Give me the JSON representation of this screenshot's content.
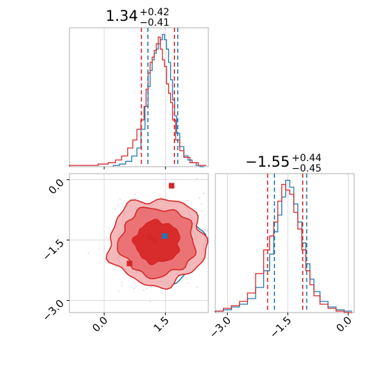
{
  "chart_data": {
    "type": "corner",
    "colors": {
      "blue": "#1f77b4",
      "red": "#d62728"
    },
    "grid": true,
    "parameters": [
      {
        "median": 1.34,
        "plus": 0.42,
        "minus": 0.41,
        "title_main": "1.34",
        "title_plus": "+0.42",
        "title_minus": "−0.41",
        "range": [
          -0.85,
          2.55
        ],
        "ticks": [
          0.0,
          1.5
        ],
        "tick_labels": [
          "0.0",
          "1.5"
        ],
        "quantiles": {
          "blue": [
            1.07,
            1.34,
            1.8
          ],
          "red": [
            0.91,
            1.34,
            1.72
          ]
        }
      },
      {
        "median": -1.55,
        "plus": 0.44,
        "minus": 0.45,
        "title_main": "−1.55",
        "title_plus": "+0.44",
        "title_minus": "−0.45",
        "range": [
          -3.3,
          0.15
        ],
        "ticks": [
          -3.0,
          -1.5,
          0.0
        ],
        "tick_labels": [
          "−3.0",
          "−1.5",
          "0.0"
        ],
        "quantiles": {
          "blue": [
            -1.83,
            -1.5,
            -1.03
          ],
          "red": [
            -2.0,
            -1.57,
            -1.13
          ]
        }
      }
    ],
    "hist1d": [
      {
        "series": [
          {
            "name": "",
            "color": "blue",
            "x": [
              0.3,
              0.45,
              0.6,
              0.75,
              0.85,
              0.95,
              1.05,
              1.1,
              1.15,
              1.2,
              1.25,
              1.3,
              1.35,
              1.4,
              1.45,
              1.5,
              1.55,
              1.6,
              1.65,
              1.7,
              1.75,
              1.8,
              1.9,
              2.0,
              2.1,
              2.2,
              2.3,
              2.4
            ],
            "y": [
              1,
              2,
              4,
              8,
              14,
              28,
              45,
              60,
              72,
              80,
              85,
              88,
              92,
              95,
              99,
              95,
              88,
              78,
              65,
              50,
              38,
              25,
              15,
              8,
              5,
              3,
              1,
              0
            ]
          },
          {
            "name": "",
            "color": "red",
            "x": [
              -0.8,
              -0.3,
              0.0,
              0.2,
              0.35,
              0.5,
              0.65,
              0.75,
              0.85,
              0.95,
              1.0,
              1.05,
              1.1,
              1.15,
              1.2,
              1.25,
              1.3,
              1.35,
              1.4,
              1.45,
              1.5,
              1.55,
              1.6,
              1.65,
              1.7,
              1.8,
              1.9,
              2.0,
              2.2,
              2.4
            ],
            "y": [
              1,
              1,
              2,
              3,
              5,
              8,
              14,
              20,
              28,
              35,
              45,
              58,
              70,
              78,
              82,
              87,
              92,
              97,
              88,
              80,
              75,
              62,
              55,
              48,
              35,
              20,
              12,
              7,
              3,
              1
            ]
          }
        ]
      },
      {
        "series": [
          {
            "name": "",
            "color": "blue",
            "x": [
              -3.2,
              -3.0,
              -2.8,
              -2.6,
              -2.4,
              -2.2,
              -2.0,
              -1.9,
              -1.8,
              -1.7,
              -1.6,
              -1.5,
              -1.4,
              -1.3,
              -1.2,
              -1.1,
              -1.0,
              -0.9,
              -0.8,
              -0.6,
              -0.4,
              -0.2,
              0.0
            ],
            "y": [
              1,
              2,
              4,
              6,
              10,
              18,
              30,
              42,
              58,
              70,
              83,
              95,
              90,
              78,
              65,
              50,
              35,
              24,
              15,
              8,
              4,
              2,
              1
            ]
          },
          {
            "name": "",
            "color": "red",
            "x": [
              -3.2,
              -3.0,
              -2.8,
              -2.6,
              -2.4,
              -2.2,
              -2.0,
              -1.9,
              -1.8,
              -1.7,
              -1.6,
              -1.5,
              -1.4,
              -1.3,
              -1.2,
              -1.1,
              -1.0,
              -0.9,
              -0.8,
              -0.6,
              -0.4,
              -0.2,
              0.0
            ],
            "y": [
              1,
              3,
              5,
              8,
              14,
              28,
              45,
              55,
              65,
              80,
              92,
              88,
              85,
              72,
              60,
              45,
              30,
              20,
              12,
              6,
              3,
              1,
              0
            ]
          }
        ]
      }
    ],
    "contours2d": [
      {
        "color": "blue",
        "level": "1",
        "cx": 1.38,
        "cy": -1.5,
        "rx": 0.5,
        "ry": 0.47,
        "fill": false
      },
      {
        "color": "blue",
        "level": "2",
        "cx": 1.38,
        "cy": -1.52,
        "rx": 0.85,
        "ry": 0.78,
        "fill": false
      },
      {
        "color": "blue",
        "level": "3",
        "cx": 1.38,
        "cy": -1.55,
        "rx": 1.05,
        "ry": 1.0,
        "fill": false
      },
      {
        "color": "red",
        "level": "3",
        "cx": 1.3,
        "cy": -1.55,
        "rx": 1.18,
        "ry": 1.08,
        "fill": true
      },
      {
        "color": "red",
        "level": "2",
        "cx": 1.3,
        "cy": -1.55,
        "rx": 0.92,
        "ry": 0.85,
        "fill": true
      },
      {
        "color": "red",
        "level": "1",
        "cx": 1.3,
        "cy": -1.55,
        "rx": 0.55,
        "ry": 0.52,
        "fill": true
      }
    ],
    "markers2d": [
      {
        "color": "blue",
        "x": 1.48,
        "y": -1.4
      },
      {
        "color": "red",
        "x": 1.12,
        "y": -1.44
      },
      {
        "color": "red",
        "x": 1.25,
        "y": -1.52
      },
      {
        "color": "red",
        "x": 0.62,
        "y": -2.08
      },
      {
        "color": "red",
        "x": 1.65,
        "y": -0.15
      }
    ]
  }
}
